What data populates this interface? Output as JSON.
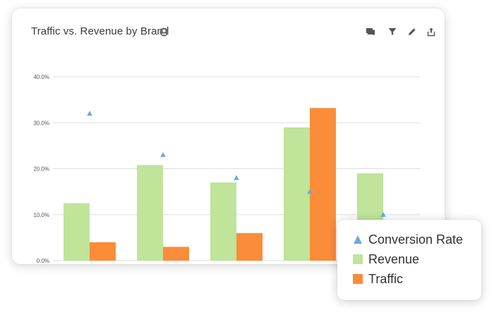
{
  "card": {
    "title": "Traffic vs. Revenue by Brand",
    "info_icon": "person-info-icon",
    "toolbar": [
      {
        "name": "comments-icon"
      },
      {
        "name": "filter-icon"
      },
      {
        "name": "edit-icon"
      },
      {
        "name": "share-icon"
      }
    ]
  },
  "colors": {
    "revenue": "#bfe49a",
    "traffic": "#fb8c39",
    "conversion": "#6ba9d8",
    "grid": "#dddddd"
  },
  "chart_data": {
    "type": "bar",
    "title": "Traffic vs. Revenue by Brand",
    "xlabel": "",
    "ylabel": "",
    "ylim": [
      0,
      40
    ],
    "yticks": [
      0,
      10,
      20,
      30,
      40
    ],
    "ytick_labels": [
      "0.0%",
      "10.0%",
      "20.0%",
      "30.0%",
      "40.0%"
    ],
    "grid": true,
    "legend_position": "bottom-right",
    "category_count": 5,
    "series": [
      {
        "name": "Revenue",
        "kind": "bar",
        "values": [
          12.5,
          20.8,
          17.0,
          29.0,
          19.0
        ]
      },
      {
        "name": "Traffic",
        "kind": "bar",
        "values": [
          4.0,
          3.0,
          6.0,
          33.2,
          null
        ]
      },
      {
        "name": "Conversion Rate",
        "kind": "marker",
        "values": [
          32.0,
          23.0,
          18.0,
          15.0,
          10.0
        ]
      }
    ]
  },
  "legend": {
    "items": [
      {
        "label": "Conversion Rate",
        "shape": "triangle",
        "color": "#6ba9d8"
      },
      {
        "label": "Revenue",
        "shape": "square",
        "color": "#bfe49a"
      },
      {
        "label": "Traffic",
        "shape": "square",
        "color": "#fb8c39"
      }
    ]
  }
}
